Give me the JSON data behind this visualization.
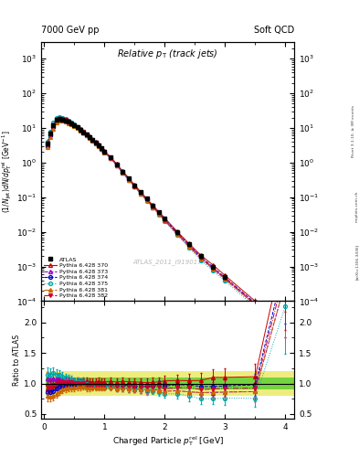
{
  "title_left": "7000 GeV pp",
  "title_right": "Soft QCD",
  "plot_title": "Relative p_{T} (track jets)",
  "xlabel": "Charged Particle p_{T}^{rel} [GeV]",
  "ylabel_main": "(1/Njet)dN/dp_{T}^{rel} [GeV^{-1}]",
  "ylabel_ratio": "Ratio to ATLAS",
  "watermark": "ATLAS_2011_I919017",
  "rivet_text": "Rivet 3.1.10, ≥ 3M events",
  "arxiv_text": "[arXiv:1306.3436]",
  "mcplots_text": "mcplots.cern.ch",
  "atlas_data": {
    "x": [
      0.05,
      0.1,
      0.15,
      0.2,
      0.25,
      0.3,
      0.35,
      0.4,
      0.45,
      0.5,
      0.55,
      0.6,
      0.65,
      0.7,
      0.75,
      0.8,
      0.85,
      0.9,
      0.95,
      1.0,
      1.1,
      1.2,
      1.3,
      1.4,
      1.5,
      1.6,
      1.7,
      1.8,
      1.9,
      2.0,
      2.2,
      2.4,
      2.6,
      2.8,
      3.0,
      3.5,
      4.0
    ],
    "y": [
      3.5,
      7.0,
      12.0,
      17.0,
      18.0,
      17.5,
      16.5,
      15.0,
      13.5,
      12.0,
      10.5,
      9.0,
      7.5,
      6.5,
      5.5,
      4.5,
      3.8,
      3.2,
      2.6,
      2.1,
      1.4,
      0.9,
      0.55,
      0.35,
      0.22,
      0.14,
      0.09,
      0.058,
      0.037,
      0.024,
      0.01,
      0.0044,
      0.002,
      0.001,
      0.0005,
      9e-05,
      1.5e-06
    ],
    "yerr": [
      0.3,
      0.5,
      0.7,
      0.9,
      0.9,
      0.8,
      0.8,
      0.7,
      0.6,
      0.5,
      0.5,
      0.4,
      0.3,
      0.3,
      0.25,
      0.2,
      0.17,
      0.14,
      0.11,
      0.09,
      0.06,
      0.04,
      0.025,
      0.016,
      0.011,
      0.007,
      0.005,
      0.003,
      0.002,
      0.0015,
      0.0007,
      0.0004,
      0.0002,
      0.0001,
      6e-05,
      1.5e-05,
      5e-07
    ],
    "color": "#000000",
    "marker": "s",
    "label": "ATLAS"
  },
  "mc_sets": [
    {
      "label": "Pythia 6.428 370",
      "color": "#cc0000",
      "linestyle": "-",
      "marker": "^",
      "fillstyle": "none",
      "x": [
        0.05,
        0.1,
        0.15,
        0.2,
        0.25,
        0.3,
        0.35,
        0.4,
        0.45,
        0.5,
        0.55,
        0.6,
        0.65,
        0.7,
        0.75,
        0.8,
        0.85,
        0.9,
        0.95,
        1.0,
        1.1,
        1.2,
        1.3,
        1.4,
        1.5,
        1.6,
        1.7,
        1.8,
        1.9,
        2.0,
        2.2,
        2.4,
        2.6,
        2.8,
        3.0,
        3.5,
        4.0
      ],
      "y": [
        3.2,
        6.5,
        11.5,
        16.5,
        18.0,
        17.8,
        16.8,
        15.2,
        13.8,
        12.2,
        10.8,
        9.2,
        7.8,
        6.7,
        5.6,
        4.6,
        3.9,
        3.3,
        2.65,
        2.15,
        1.45,
        0.92,
        0.57,
        0.36,
        0.225,
        0.143,
        0.091,
        0.059,
        0.038,
        0.025,
        0.0105,
        0.0046,
        0.0021,
        0.0011,
        0.00055,
        0.0001,
        5e-06
      ],
      "yerr": [
        0.2,
        0.4,
        0.6,
        0.8,
        0.8,
        0.7,
        0.7,
        0.6,
        0.6,
        0.5,
        0.4,
        0.4,
        0.3,
        0.3,
        0.2,
        0.2,
        0.15,
        0.13,
        0.1,
        0.08,
        0.05,
        0.035,
        0.022,
        0.014,
        0.009,
        0.006,
        0.004,
        0.003,
        0.002,
        0.0012,
        0.0006,
        0.00025,
        0.00012,
        7e-05,
        4e-05,
        8e-06,
        5e-07
      ]
    },
    {
      "label": "Pythia 6.428 373",
      "color": "#9900cc",
      "linestyle": "--",
      "marker": "^",
      "fillstyle": "none",
      "x": [
        0.05,
        0.1,
        0.15,
        0.2,
        0.25,
        0.3,
        0.35,
        0.4,
        0.45,
        0.5,
        0.55,
        0.6,
        0.65,
        0.7,
        0.75,
        0.8,
        0.85,
        0.9,
        0.95,
        1.0,
        1.1,
        1.2,
        1.3,
        1.4,
        1.5,
        1.6,
        1.7,
        1.8,
        1.9,
        2.0,
        2.2,
        2.4,
        2.6,
        2.8,
        3.0,
        3.5,
        4.0
      ],
      "y": [
        3.8,
        7.5,
        13.0,
        18.5,
        19.5,
        18.8,
        17.5,
        15.8,
        14.0,
        12.3,
        10.7,
        9.1,
        7.6,
        6.5,
        5.4,
        4.4,
        3.7,
        3.1,
        2.5,
        2.0,
        1.33,
        0.83,
        0.51,
        0.32,
        0.2,
        0.126,
        0.08,
        0.052,
        0.033,
        0.021,
        0.0088,
        0.0038,
        0.0017,
        0.00085,
        0.00043,
        7.8e-05,
        4e-06
      ],
      "yerr": [
        0.2,
        0.4,
        0.6,
        0.8,
        0.8,
        0.7,
        0.7,
        0.6,
        0.6,
        0.5,
        0.4,
        0.4,
        0.3,
        0.3,
        0.2,
        0.2,
        0.15,
        0.13,
        0.1,
        0.08,
        0.05,
        0.03,
        0.02,
        0.013,
        0.008,
        0.005,
        0.003,
        0.002,
        0.0015,
        0.001,
        0.0005,
        0.0002,
        0.0001,
        6e-05,
        3e-05,
        6e-06,
        3e-07
      ]
    },
    {
      "label": "Pythia 6.428 374",
      "color": "#0000cc",
      "linestyle": "--",
      "marker": "o",
      "fillstyle": "none",
      "x": [
        0.05,
        0.1,
        0.15,
        0.2,
        0.25,
        0.3,
        0.35,
        0.4,
        0.45,
        0.5,
        0.55,
        0.6,
        0.65,
        0.7,
        0.75,
        0.8,
        0.85,
        0.9,
        0.95,
        1.0,
        1.1,
        1.2,
        1.3,
        1.4,
        1.5,
        1.6,
        1.7,
        1.8,
        1.9,
        2.0,
        2.2,
        2.4,
        2.6,
        2.8,
        3.0,
        3.5,
        4.0
      ],
      "y": [
        3.0,
        6.0,
        10.5,
        15.5,
        17.0,
        16.8,
        16.0,
        14.6,
        13.2,
        11.7,
        10.3,
        8.8,
        7.4,
        6.3,
        5.3,
        4.35,
        3.67,
        3.1,
        2.5,
        2.02,
        1.36,
        0.86,
        0.53,
        0.34,
        0.21,
        0.135,
        0.086,
        0.056,
        0.036,
        0.023,
        0.0098,
        0.0043,
        0.0019,
        0.00095,
        0.00048,
        8.8e-05,
        4.5e-06
      ],
      "yerr": [
        0.2,
        0.35,
        0.55,
        0.75,
        0.75,
        0.7,
        0.65,
        0.6,
        0.55,
        0.5,
        0.4,
        0.35,
        0.3,
        0.25,
        0.22,
        0.18,
        0.15,
        0.12,
        0.1,
        0.08,
        0.05,
        0.033,
        0.021,
        0.013,
        0.008,
        0.005,
        0.004,
        0.003,
        0.002,
        0.001,
        0.0005,
        0.0002,
        0.0001,
        6e-05,
        3e-05,
        6e-06,
        3e-07
      ]
    },
    {
      "label": "Pythia 6.428 375",
      "color": "#00aaaa",
      "linestyle": ":",
      "marker": "o",
      "fillstyle": "none",
      "x": [
        0.05,
        0.1,
        0.15,
        0.2,
        0.25,
        0.3,
        0.35,
        0.4,
        0.45,
        0.5,
        0.55,
        0.6,
        0.65,
        0.7,
        0.75,
        0.8,
        0.85,
        0.9,
        0.95,
        1.0,
        1.1,
        1.2,
        1.3,
        1.4,
        1.5,
        1.6,
        1.7,
        1.8,
        1.9,
        2.0,
        2.2,
        2.4,
        2.6,
        2.8,
        3.0,
        3.5,
        4.0
      ],
      "y": [
        4.0,
        8.0,
        14.0,
        19.5,
        20.5,
        19.5,
        18.0,
        16.2,
        14.3,
        12.5,
        10.8,
        9.2,
        7.7,
        6.5,
        5.4,
        4.42,
        3.72,
        3.12,
        2.52,
        2.03,
        1.35,
        0.84,
        0.51,
        0.32,
        0.2,
        0.126,
        0.079,
        0.051,
        0.032,
        0.02,
        0.0083,
        0.0035,
        0.0015,
        0.00075,
        0.00038,
        6.8e-05,
        3.4e-06
      ],
      "yerr": [
        0.25,
        0.45,
        0.7,
        0.9,
        0.9,
        0.85,
        0.78,
        0.68,
        0.6,
        0.52,
        0.44,
        0.37,
        0.31,
        0.26,
        0.22,
        0.18,
        0.15,
        0.12,
        0.1,
        0.08,
        0.05,
        0.033,
        0.021,
        0.013,
        0.008,
        0.005,
        0.003,
        0.002,
        0.0015,
        0.001,
        0.0004,
        0.0002,
        0.0001,
        5e-05,
        3e-05,
        5e-06,
        3e-07
      ]
    },
    {
      "label": "Pythia 6.428 381",
      "color": "#cc6600",
      "linestyle": "-.",
      "marker": "^",
      "fillstyle": "full",
      "x": [
        0.05,
        0.1,
        0.15,
        0.2,
        0.25,
        0.3,
        0.35,
        0.4,
        0.45,
        0.5,
        0.55,
        0.6,
        0.65,
        0.7,
        0.75,
        0.8,
        0.85,
        0.9,
        0.95,
        1.0,
        1.1,
        1.2,
        1.3,
        1.4,
        1.5,
        1.6,
        1.7,
        1.8,
        1.9,
        2.0,
        2.2,
        2.4,
        2.6,
        2.8,
        3.0,
        3.5,
        4.0
      ],
      "y": [
        2.8,
        5.5,
        9.5,
        14.0,
        15.8,
        15.8,
        15.2,
        13.9,
        12.6,
        11.2,
        9.9,
        8.5,
        7.2,
        6.1,
        5.15,
        4.25,
        3.58,
        3.02,
        2.44,
        1.97,
        1.32,
        0.83,
        0.51,
        0.32,
        0.2,
        0.127,
        0.081,
        0.052,
        0.033,
        0.021,
        0.0088,
        0.0038,
        0.0017,
        0.00086,
        0.00043,
        7.8e-05,
        4e-06
      ],
      "yerr": [
        0.2,
        0.35,
        0.55,
        0.7,
        0.75,
        0.7,
        0.65,
        0.6,
        0.55,
        0.48,
        0.42,
        0.36,
        0.3,
        0.25,
        0.21,
        0.18,
        0.15,
        0.12,
        0.1,
        0.08,
        0.05,
        0.033,
        0.021,
        0.013,
        0.008,
        0.005,
        0.003,
        0.002,
        0.0015,
        0.001,
        0.0005,
        0.0002,
        0.0001,
        6e-05,
        3e-05,
        6e-06,
        3e-07
      ]
    },
    {
      "label": "Pythia 6.428 382",
      "color": "#cc0033",
      "linestyle": "-.",
      "marker": "v",
      "fillstyle": "full",
      "x": [
        0.05,
        0.1,
        0.15,
        0.2,
        0.25,
        0.3,
        0.35,
        0.4,
        0.45,
        0.5,
        0.55,
        0.6,
        0.65,
        0.7,
        0.75,
        0.8,
        0.85,
        0.9,
        0.95,
        1.0,
        1.1,
        1.2,
        1.3,
        1.4,
        1.5,
        1.6,
        1.7,
        1.8,
        1.9,
        2.0,
        2.2,
        2.4,
        2.6,
        2.8,
        3.0,
        3.5,
        4.0
      ],
      "y": [
        3.3,
        6.7,
        11.8,
        17.2,
        18.5,
        18.0,
        17.0,
        15.4,
        13.8,
        12.1,
        10.6,
        9.0,
        7.6,
        6.4,
        5.38,
        4.42,
        3.73,
        3.14,
        2.54,
        2.05,
        1.37,
        0.86,
        0.53,
        0.335,
        0.21,
        0.133,
        0.085,
        0.055,
        0.035,
        0.022,
        0.0093,
        0.0041,
        0.0018,
        0.00091,
        0.00046,
        8.3e-05,
        4.3e-06
      ],
      "yerr": [
        0.2,
        0.4,
        0.6,
        0.8,
        0.8,
        0.75,
        0.7,
        0.65,
        0.58,
        0.51,
        0.44,
        0.37,
        0.31,
        0.27,
        0.22,
        0.18,
        0.15,
        0.13,
        0.1,
        0.08,
        0.055,
        0.034,
        0.022,
        0.014,
        0.009,
        0.006,
        0.004,
        0.003,
        0.002,
        0.001,
        0.0005,
        0.0002,
        0.0001,
        6e-05,
        3e-05,
        6e-06,
        4e-07
      ]
    }
  ],
  "band_green_lo": 0.9,
  "band_green_hi": 1.1,
  "band_yellow_lo": 0.8,
  "band_yellow_hi": 1.2,
  "band_green_color": "#00bb00",
  "band_yellow_color": "#dddd00",
  "band_alpha": 0.5,
  "ylim_main": [
    0.0001,
    3000.0
  ],
  "ylim_ratio": [
    0.42,
    2.35
  ],
  "xlim": [
    -0.05,
    4.15
  ],
  "xticks": [
    0,
    1,
    2,
    3,
    4
  ]
}
